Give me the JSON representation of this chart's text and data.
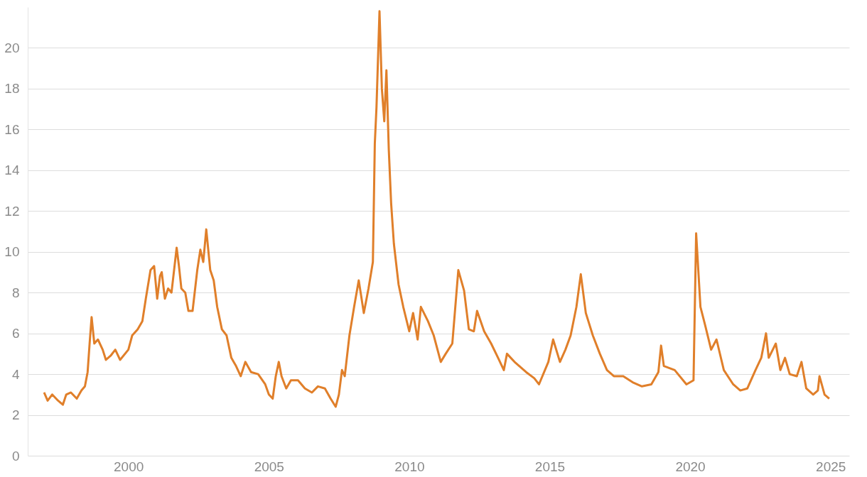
{
  "chart_data": {
    "type": "line",
    "x": [
      "1996-12-31",
      "1997-02-15",
      "1997-04-15",
      "1997-07-01",
      "1997-09-01",
      "1997-10-15",
      "1997-12-15",
      "1998-03-01",
      "1998-05-01",
      "1998-06-15",
      "1998-07-20",
      "1998-08-15",
      "1998-09-10",
      "1998-10-15",
      "1998-12-01",
      "1999-02-01",
      "1999-03-15",
      "1999-05-15",
      "1999-07-15",
      "1999-09-15",
      "2000-01-01",
      "2000-02-20",
      "2000-05-01",
      "2000-07-01",
      "2000-08-15",
      "2000-10-15",
      "2000-12-01",
      "2001-01-10",
      "2001-02-15",
      "2001-03-10",
      "2001-04-20",
      "2001-06-01",
      "2001-07-15",
      "2001-09-20",
      "2001-10-20",
      "2001-11-20",
      "2002-01-10",
      "2002-02-20",
      "2002-04-15",
      "2002-06-15",
      "2002-07-25",
      "2002-09-01",
      "2002-10-10",
      "2002-12-01",
      "2003-01-15",
      "2003-03-01",
      "2003-05-01",
      "2003-07-01",
      "2003-09-01",
      "2003-11-01",
      "2004-01-01",
      "2004-03-01",
      "2004-05-15",
      "2004-08-15",
      "2004-11-15",
      "2005-01-01",
      "2005-02-20",
      "2005-04-01",
      "2005-05-10",
      "2005-06-15",
      "2005-08-15",
      "2005-10-15",
      "2006-01-15",
      "2006-04-15",
      "2006-07-15",
      "2006-10-01",
      "2006-12-31",
      "2007-03-15",
      "2007-05-20",
      "2007-07-01",
      "2007-08-10",
      "2007-09-15",
      "2007-11-15",
      "2008-01-15",
      "2008-03-15",
      "2008-05-20",
      "2008-07-20",
      "2008-09-15",
      "2008-10-10",
      "2008-11-01",
      "2008-12-10",
      "2009-01-10",
      "2009-02-10",
      "2009-03-10",
      "2009-04-10",
      "2009-05-10",
      "2009-06-15",
      "2009-08-15",
      "2009-10-15",
      "2010-01-01",
      "2010-02-20",
      "2010-04-20",
      "2010-06-01",
      "2010-09-01",
      "2010-11-15",
      "2011-02-15",
      "2011-04-20",
      "2011-07-15",
      "2011-10-01",
      "2011-12-15",
      "2012-02-15",
      "2012-04-20",
      "2012-06-01",
      "2012-09-01",
      "2012-12-01",
      "2013-03-01",
      "2013-05-15",
      "2013-06-25",
      "2013-10-01",
      "2014-03-01",
      "2014-06-15",
      "2014-08-15",
      "2014-12-15",
      "2015-02-15",
      "2015-05-15",
      "2015-07-25",
      "2015-10-01",
      "2015-12-15",
      "2016-02-10",
      "2016-04-15",
      "2016-07-15",
      "2016-10-15",
      "2017-01-15",
      "2017-04-15",
      "2017-08-15",
      "2017-12-15",
      "2018-04-15",
      "2018-08-15",
      "2018-11-15",
      "2018-12-20",
      "2019-01-25",
      "2019-06-15",
      "2019-11-15",
      "2020-02-15",
      "2020-03-20",
      "2020-05-15",
      "2020-07-15",
      "2020-10-01",
      "2020-12-10",
      "2021-03-15",
      "2021-07-15",
      "2021-10-15",
      "2022-01-15",
      "2022-05-01",
      "2022-07-15",
      "2022-09-15",
      "2022-10-20",
      "2023-01-20",
      "2023-03-20",
      "2023-05-20",
      "2023-07-20",
      "2023-10-20",
      "2023-12-20",
      "2024-02-20",
      "2024-05-20",
      "2024-07-20",
      "2024-08-10",
      "2024-10-15",
      "2024-12-15"
    ],
    "series": [
      {
        "color": "#e07f2a",
        "values": [
          3.1,
          2.7,
          3.0,
          2.7,
          2.5,
          3.0,
          3.1,
          2.8,
          3.2,
          3.4,
          4.1,
          5.5,
          6.8,
          5.5,
          5.7,
          5.2,
          4.7,
          4.9,
          5.2,
          4.7,
          5.2,
          5.9,
          6.2,
          6.6,
          7.7,
          9.1,
          9.3,
          7.7,
          8.8,
          9.0,
          7.7,
          8.2,
          8.0,
          10.2,
          9.3,
          8.2,
          8.0,
          7.1,
          7.1,
          9.1,
          10.1,
          9.5,
          11.1,
          9.1,
          8.6,
          7.3,
          6.2,
          5.9,
          4.8,
          4.4,
          3.9,
          4.6,
          4.1,
          4.0,
          3.5,
          3.0,
          2.8,
          3.9,
          4.6,
          3.9,
          3.3,
          3.7,
          3.7,
          3.3,
          3.1,
          3.4,
          3.3,
          2.8,
          2.4,
          3.0,
          4.2,
          3.9,
          5.9,
          7.3,
          8.6,
          7.0,
          8.2,
          9.5,
          15.3,
          17.1,
          21.8,
          18.0,
          16.4,
          18.9,
          15.0,
          12.4,
          10.4,
          8.4,
          7.3,
          6.1,
          7.0,
          5.7,
          7.3,
          6.6,
          5.9,
          4.6,
          5.0,
          5.5,
          9.1,
          8.1,
          6.2,
          6.1,
          7.1,
          6.1,
          5.5,
          4.8,
          4.2,
          5.0,
          4.6,
          4.1,
          3.8,
          3.5,
          4.6,
          5.7,
          4.6,
          5.2,
          5.9,
          7.3,
          8.9,
          7.0,
          5.9,
          5.0,
          4.2,
          3.9,
          3.9,
          3.6,
          3.4,
          3.5,
          4.1,
          5.4,
          4.4,
          4.2,
          3.5,
          3.7,
          10.9,
          7.3,
          6.4,
          5.2,
          5.7,
          4.2,
          3.5,
          3.2,
          3.3,
          4.2,
          4.8,
          6.0,
          4.8,
          5.5,
          4.2,
          4.8,
          4.0,
          3.9,
          4.6,
          3.3,
          3.0,
          3.2,
          3.9,
          3.0,
          2.8
        ]
      }
    ],
    "xlim": [
      "1996-06-01",
      "2025-09-01"
    ],
    "xticks": [
      {
        "value": "2000-01-01",
        "label": "2000"
      },
      {
        "value": "2005-01-01",
        "label": "2005"
      },
      {
        "value": "2010-01-01",
        "label": "2010"
      },
      {
        "value": "2015-01-01",
        "label": "2015"
      },
      {
        "value": "2020-01-01",
        "label": "2020"
      },
      {
        "value": "2025-01-01",
        "label": "2025"
      }
    ],
    "ylim": [
      0,
      22
    ],
    "yticks": [
      0,
      2,
      4,
      6,
      8,
      10,
      12,
      14,
      16,
      18,
      20
    ],
    "grid": "y",
    "marker": "none",
    "line_style": "solid"
  }
}
